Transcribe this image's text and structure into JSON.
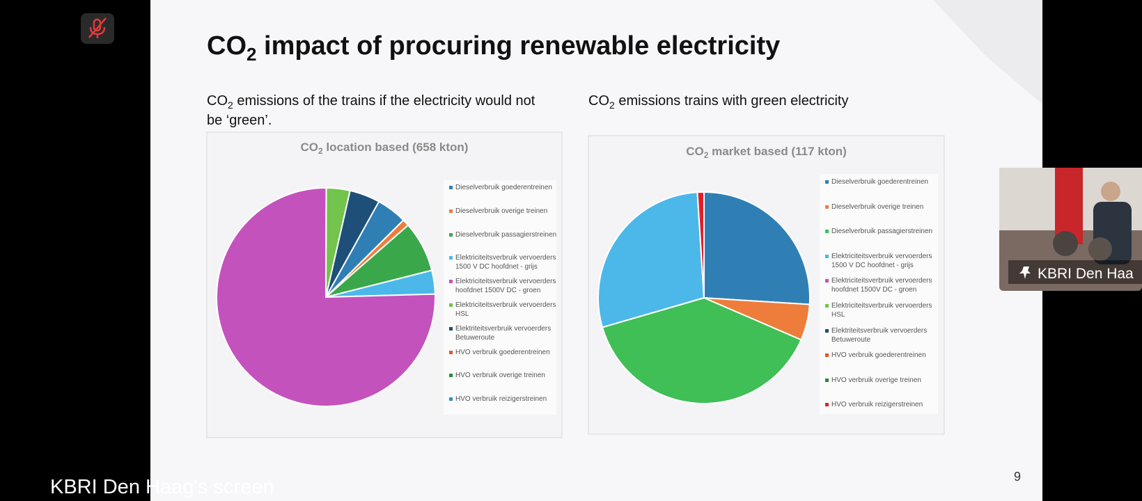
{
  "call": {
    "presenter_label": "KBRI Den Haag's screen",
    "participant_name": "KBRI Den Haa"
  },
  "slide": {
    "title": [
      "CO",
      "2",
      " impact of procuring renewable electricity"
    ],
    "subtitles": [
      [
        "CO",
        "2",
        " emissions of the trains if the electricity would not",
        "be ‘green’."
      ],
      [
        "CO",
        "2",
        " emissions trains with green electricity"
      ]
    ],
    "page_number": "9",
    "charts": [
      {
        "type": "pie",
        "title": [
          "CO",
          "2",
          " location based (658 kton)"
        ],
        "categories": [
          "Dieselverbruik goederentreinen",
          "Dieselverbruik overige treinen",
          "Dieselverbruik passagierstreinen",
          "Elektriciteitsverbruik vervoerders 1500 V DC hoofdnet - grijs",
          "Elektriciteitsverbruik vervoerders hoofdnet 1500V DC - groen",
          "Elektriciteitsverbruik vervoerders HSL",
          "Elektriteitsverbruik vervoerders Betuweroute",
          "HVO verbruik goederentreinen",
          "HVO verbruik overige treinen",
          "HVO verbruik reizigerstreinen"
        ],
        "values": [
          4.5,
          1,
          7.5,
          3.5,
          75.5,
          3.5,
          4.5,
          0,
          0,
          0
        ],
        "colors": [
          "#2f7fb5",
          "#ee7d3b",
          "#3aa84a",
          "#4cb8ea",
          "#c452bd",
          "#72c44c",
          "#1d4f78",
          "#e0572a",
          "#2a8a3a",
          "#2e90d0"
        ]
      },
      {
        "type": "pie",
        "title": [
          "CO",
          "2",
          " market based (117 kton)"
        ],
        "categories": [
          "Dieselverbruik goederentreinen",
          "Dieselverbruik overige treinen",
          "Dieselverbruik passagierstreinen",
          "Elektriciteitsverbruik vervoerders 1500 V DC hoofdnet - grijs",
          "Elektriciteitsverbruik vervoerders hoofdnet 1500V DC - groen",
          "Elektriciteitsverbruik vervoerders HSL",
          "Elektriteitsverbruik vervoerders Betuweroute",
          "HVO verbruik goederentreinen",
          "HVO verbruik overige treinen",
          "HVO verbruik reizigerstreinen"
        ],
        "values": [
          26,
          5.5,
          39,
          28.5,
          0,
          0,
          0,
          0,
          0,
          1
        ],
        "colors": [
          "#2f7fb5",
          "#ee7d3b",
          "#3fbf55",
          "#4cb8ea",
          "#c452bd",
          "#72c44c",
          "#1d4f78",
          "#e0572a",
          "#2a8a3a",
          "#e0202a"
        ]
      }
    ]
  }
}
